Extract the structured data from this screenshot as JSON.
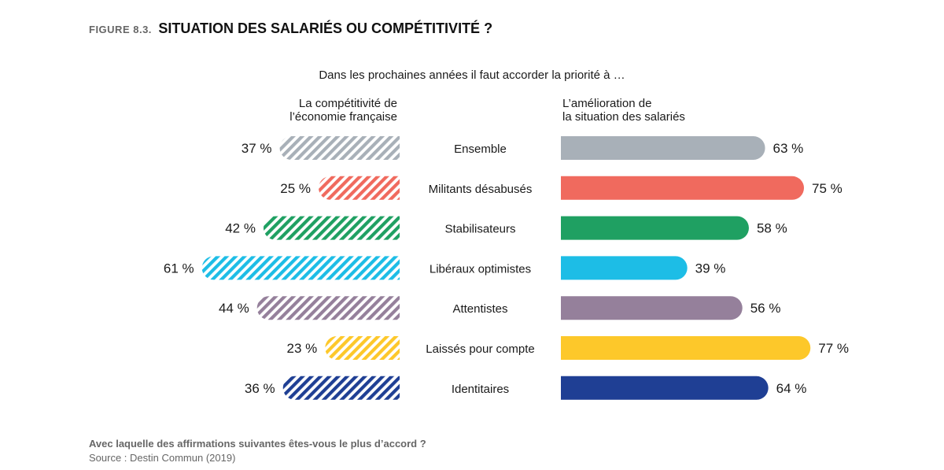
{
  "figure": {
    "label": "FIGURE 8.3.",
    "title": "SITUATION DES SALARIÉS OU COMPÉTITIVITÉ ?"
  },
  "question": "Dans les prochaines années il faut accorder la priorité à …",
  "left_header": [
    "La compétitivité de",
    "l’économie française"
  ],
  "right_header": [
    "L’amélioration de",
    "la situation des salariés"
  ],
  "footer": {
    "question": "Avec laquelle des affirmations suivantes êtes-vous le plus d’accord ?",
    "source": "Source : Destin Commun (2019)"
  },
  "chart_data": {
    "type": "bar",
    "orientation": "diverging-horizontal",
    "categories": [
      "Ensemble",
      "Militants désabusés",
      "Stabilisateurs",
      "Libéraux optimistes",
      "Attentistes",
      "Laissés pour compte",
      "Identitaires"
    ],
    "series": [
      {
        "name": "La compétitivité de l’économie française",
        "values": [
          37,
          25,
          42,
          61,
          44,
          23,
          36
        ],
        "labels": [
          "37 %",
          "25 %",
          "42 %",
          "61 %",
          "44 %",
          "23 %",
          "36 %"
        ],
        "pattern": "hatched"
      },
      {
        "name": "L’amélioration de la situation des salariés",
        "values": [
          63,
          75,
          58,
          39,
          56,
          77,
          64
        ],
        "labels": [
          "63 %",
          "75 %",
          "58 %",
          "39 %",
          "56 %",
          "77 %",
          "64 %"
        ],
        "pattern": "solid"
      }
    ],
    "colors": [
      "#a8b0b8",
      "#f06a5e",
      "#1fa062",
      "#1dbde6",
      "#95809b",
      "#fdc82a",
      "#1f3f94"
    ],
    "unit": "%"
  }
}
